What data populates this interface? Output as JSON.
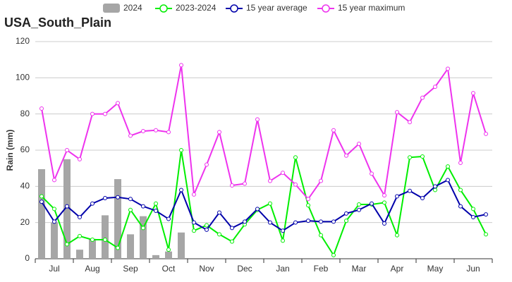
{
  "chart_data": {
    "type": "bar-line",
    "title": "USA_South_Plain",
    "y_label": "Rain (mm)",
    "categories": [
      null,
      "Jul",
      null,
      null,
      "Aug",
      null,
      null,
      "Sep",
      null,
      null,
      "Oct",
      null,
      null,
      "Nov",
      null,
      null,
      "Dec",
      null,
      null,
      "Jan",
      null,
      null,
      "Feb",
      null,
      null,
      "Mar",
      null,
      null,
      "Apr",
      null,
      null,
      "May",
      null,
      null,
      "Jun",
      null
    ],
    "series": [
      {
        "name": "2024",
        "type": "bar",
        "color": "#a6a6a6",
        "values": [
          49.5,
          20,
          55,
          5,
          11,
          24,
          44,
          13.5,
          23.5,
          2,
          4,
          14.5,
          null,
          null,
          null,
          null,
          null,
          null,
          null,
          null,
          null,
          null,
          null,
          null,
          null,
          null,
          null,
          null,
          null,
          null,
          null,
          null,
          null,
          null,
          null,
          null
        ]
      },
      {
        "name": "2023-2024",
        "type": "line",
        "color": "#00ee00",
        "values": [
          34.5,
          27.5,
          8,
          12.5,
          10.5,
          10.5,
          6,
          27,
          17,
          30.5,
          5,
          60,
          15.5,
          18.5,
          13.5,
          9.5,
          19,
          27,
          30.5,
          10,
          56,
          29.5,
          13,
          2,
          21,
          30,
          30,
          31,
          13,
          56,
          56.5,
          38,
          51,
          38,
          27.5,
          13.5
        ]
      },
      {
        "name": "15 year average",
        "type": "line",
        "color": "#0000aa",
        "values": [
          31.5,
          20.5,
          29,
          23,
          30.5,
          33.5,
          34,
          33,
          29,
          26.5,
          22,
          38,
          20,
          16,
          25.5,
          17,
          20.5,
          27.5,
          20,
          15.5,
          20,
          21,
          20.5,
          20.5,
          25,
          27,
          30.5,
          19.5,
          34.5,
          37.5,
          33.5,
          40,
          43.5,
          29,
          23,
          24.5
        ]
      },
      {
        "name": "15 year maximum",
        "type": "line",
        "color": "#ee33ee",
        "values": [
          83,
          43.5,
          60,
          55,
          80,
          80,
          86,
          68,
          70.5,
          71,
          70,
          107,
          35.5,
          52,
          70,
          40.5,
          41.5,
          77,
          43,
          47.5,
          41,
          33,
          43,
          71,
          57,
          63.5,
          47,
          35,
          81,
          75.5,
          89,
          95,
          105,
          53,
          91.5,
          69
        ]
      }
    ],
    "ylim": [
      0,
      120
    ],
    "yticks": [
      0,
      20,
      40,
      60,
      80,
      100,
      120
    ],
    "grid": true
  }
}
